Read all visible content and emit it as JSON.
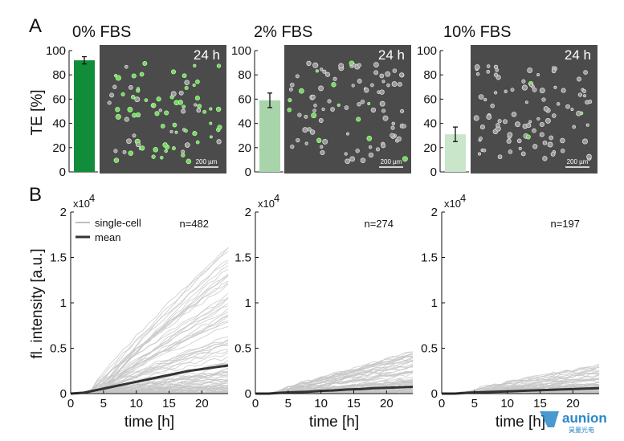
{
  "panel_a": {
    "letter": "A",
    "ylabel": "TE [%]",
    "image_time_label": "24 h",
    "scale_bar_label": "200 µm"
  },
  "panel_b": {
    "letter": "B",
    "ylabel": "fl. intensity [a.u.]",
    "xlabel": "time [h]",
    "exponent_label": "x10",
    "exponent_power": "4",
    "legend_single": "single-cell",
    "legend_mean": "mean"
  },
  "colors": {
    "bar_0": "#118c3a",
    "bar_2": "#a8d4a9",
    "bar_10": "#c9e5ca",
    "single_cell": "#c6c6c6",
    "mean": "#333333",
    "micrograph_bg": "#4b4b4b",
    "brand": "#2a86c8"
  },
  "watermark": {
    "text": "aunion",
    "subtext": "昊量光电"
  },
  "chart_data": [
    {
      "type": "bar",
      "title": "0% FBS",
      "categories": [
        "0% FBS"
      ],
      "values": [
        92
      ],
      "error": [
        3
      ],
      "ylabel": "TE [%]",
      "ylim": [
        0,
        100
      ],
      "yticks": [
        0,
        20,
        40,
        60,
        80,
        100
      ]
    },
    {
      "type": "bar",
      "title": "2% FBS",
      "categories": [
        "2% FBS"
      ],
      "values": [
        59
      ],
      "error": [
        6
      ],
      "ylim": [
        0,
        100
      ],
      "yticks": [
        0,
        20,
        40,
        60,
        80,
        100
      ]
    },
    {
      "type": "bar",
      "title": "10% FBS",
      "categories": [
        "10% FBS"
      ],
      "values": [
        31
      ],
      "error": [
        6
      ],
      "ylim": [
        0,
        100
      ],
      "yticks": [
        0,
        20,
        40,
        60,
        80,
        100
      ]
    },
    {
      "type": "line",
      "n_label": "n=482",
      "xlabel": "time [h]",
      "ylabel": "fl. intensity [a.u.]",
      "xlim": [
        0,
        24
      ],
      "ylim": [
        0,
        2
      ],
      "xticks": [
        0,
        5,
        10,
        15,
        20
      ],
      "yticks": [
        0,
        0.5,
        1,
        1.5,
        2
      ],
      "ytick_labels": [
        "0",
        "0.5",
        "1",
        "1.5",
        "2"
      ],
      "y_multiplier": "x10^4",
      "series": [
        {
          "name": "mean",
          "x": [
            0,
            2,
            4,
            6,
            8,
            10,
            12,
            14,
            16,
            18,
            20,
            22,
            24
          ],
          "y": [
            0,
            0.01,
            0.04,
            0.07,
            0.1,
            0.13,
            0.16,
            0.19,
            0.22,
            0.25,
            0.27,
            0.29,
            0.31
          ]
        },
        {
          "name": "single-cell",
          "max_final": 1.6,
          "envelope": "many traces rising after ~3 h, spread up to ~1.8 at 21 h"
        }
      ]
    },
    {
      "type": "line",
      "n_label": "n=274",
      "xlabel": "time [h]",
      "xlim": [
        0,
        24
      ],
      "ylim": [
        0,
        2
      ],
      "xticks": [
        0,
        5,
        10,
        15,
        20
      ],
      "yticks": [
        0,
        0.5,
        1,
        1.5,
        2
      ],
      "ytick_labels": [
        "0",
        "0.5",
        "1",
        "1.5",
        "2"
      ],
      "y_multiplier": "x10^4",
      "series": [
        {
          "name": "mean",
          "x": [
            0,
            2,
            4,
            6,
            8,
            10,
            12,
            14,
            16,
            18,
            20,
            22,
            24
          ],
          "y": [
            0,
            0.0,
            0.01,
            0.015,
            0.02,
            0.03,
            0.035,
            0.045,
            0.05,
            0.06,
            0.065,
            0.07,
            0.075
          ]
        },
        {
          "name": "single-cell",
          "max_final": 0.48
        }
      ]
    },
    {
      "type": "line",
      "n_label": "n=197",
      "xlabel": "time [h]",
      "xlim": [
        0,
        24
      ],
      "ylim": [
        0,
        2
      ],
      "xticks": [
        0,
        5,
        10,
        15,
        20
      ],
      "yticks": [
        0,
        0.5,
        1,
        1.5,
        2
      ],
      "ytick_labels": [
        "0",
        "0.5",
        "1",
        "1.5",
        "2"
      ],
      "y_multiplier": "x10^4",
      "series": [
        {
          "name": "mean",
          "x": [
            0,
            2,
            4,
            6,
            8,
            10,
            12,
            14,
            16,
            18,
            20,
            22,
            24
          ],
          "y": [
            0,
            0.0,
            0.01,
            0.015,
            0.02,
            0.025,
            0.03,
            0.035,
            0.04,
            0.045,
            0.05,
            0.055,
            0.06
          ]
        },
        {
          "name": "single-cell",
          "max_final": 0.32
        }
      ]
    }
  ]
}
